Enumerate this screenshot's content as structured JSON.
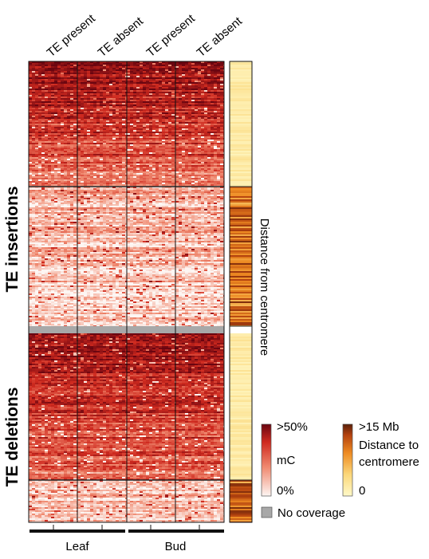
{
  "chart_data": {
    "type": "heatmap",
    "column_labels": [
      "TE present",
      "TE absent",
      "TE present",
      "TE absent"
    ],
    "tissue_groups": [
      {
        "name": "Leaf",
        "columns": [
          0,
          1
        ]
      },
      {
        "name": "Bud",
        "columns": [
          2,
          3
        ]
      }
    ],
    "row_groups": [
      {
        "name": "TE insertions",
        "clusters": [
          {
            "methylation": "high",
            "distance": "near centromere"
          },
          {
            "methylation": "low",
            "distance": "far from centromere"
          }
        ]
      },
      {
        "name": "TE deletions",
        "clusters": [
          {
            "methylation": "high",
            "distance": "near centromere"
          },
          {
            "methylation": "low",
            "distance": "far from centromere"
          }
        ]
      }
    ],
    "side_bar_label": "Distance from centromere",
    "methylation_legend": {
      "title": "mC",
      "max_label": ">50%",
      "min_label": "0%",
      "colors": [
        "#fdf6f3",
        "#f08a70",
        "#cf2a1f",
        "#6a0510"
      ]
    },
    "distance_legend": {
      "max_label": ">15 Mb",
      "title": "Distance to centromere",
      "min_label": "0",
      "colors": [
        "#fff9c8",
        "#fbd77a",
        "#ee8b22",
        "#b4420f",
        "#5a200a"
      ]
    },
    "no_coverage_label": "No coverage",
    "no_coverage_color": "#a8a8a8"
  }
}
